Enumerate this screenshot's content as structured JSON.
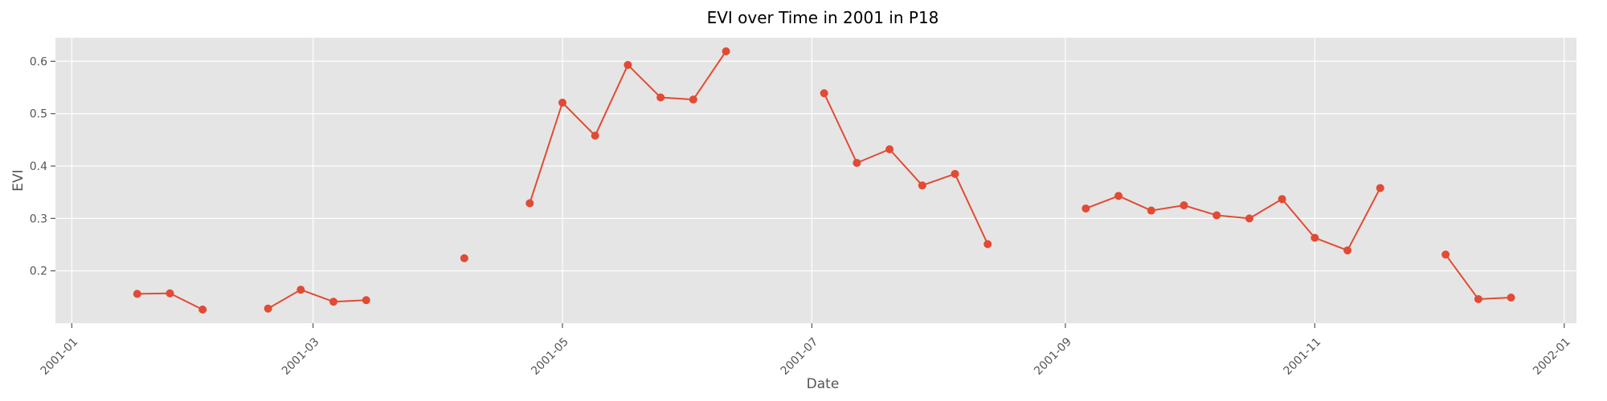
{
  "chart_data": {
    "type": "line",
    "title": "EVI over Time in 2001 in P18",
    "xlabel": "Date",
    "ylabel": "EVI",
    "x_type": "date",
    "xlim": [
      "2000-12-28",
      "2002-01-04"
    ],
    "ylim": [
      0.1,
      0.645
    ],
    "x_ticks": [
      "2001-01",
      "2001-03",
      "2001-05",
      "2001-07",
      "2001-09",
      "2001-11",
      "2002-01"
    ],
    "y_ticks": [
      0.2,
      0.3,
      0.4,
      0.5,
      0.6
    ],
    "grid": true,
    "legend": "none",
    "colors": {
      "series": "#E24A33",
      "plot_background": "#E5E5E5",
      "grid": "#FFFFFF",
      "tick_text": "#555555",
      "title_text": "#000000"
    },
    "series": [
      {
        "values": [
          {
            "x": "2001-01-17",
            "y": 0.156
          },
          {
            "x": "2001-01-25",
            "y": 0.157
          },
          {
            "x": "2001-02-02",
            "y": 0.126
          },
          {
            "x": "2001-02-10",
            "y": null
          },
          {
            "x": "2001-02-18",
            "y": 0.128
          },
          {
            "x": "2001-02-26",
            "y": 0.164
          },
          {
            "x": "2001-03-06",
            "y": 0.141
          },
          {
            "x": "2001-03-14",
            "y": 0.144
          },
          {
            "x": "2001-03-22",
            "y": null
          },
          {
            "x": "2001-03-30",
            "y": null
          },
          {
            "x": "2001-04-07",
            "y": 0.224
          },
          {
            "x": "2001-04-15",
            "y": null
          },
          {
            "x": "2001-04-23",
            "y": 0.329
          },
          {
            "x": "2001-05-01",
            "y": 0.521
          },
          {
            "x": "2001-05-09",
            "y": 0.458
          },
          {
            "x": "2001-05-17",
            "y": 0.593
          },
          {
            "x": "2001-05-25",
            "y": 0.531
          },
          {
            "x": "2001-06-02",
            "y": 0.527
          },
          {
            "x": "2001-06-10",
            "y": 0.619
          },
          {
            "x": "2001-06-18",
            "y": null
          },
          {
            "x": "2001-06-26",
            "y": null
          },
          {
            "x": "2001-07-04",
            "y": 0.539
          },
          {
            "x": "2001-07-12",
            "y": 0.406
          },
          {
            "x": "2001-07-20",
            "y": 0.432
          },
          {
            "x": "2001-07-28",
            "y": 0.363
          },
          {
            "x": "2001-08-05",
            "y": 0.385
          },
          {
            "x": "2001-08-13",
            "y": 0.251
          },
          {
            "x": "2001-08-21",
            "y": null
          },
          {
            "x": "2001-08-29",
            "y": null
          },
          {
            "x": "2001-09-06",
            "y": 0.319
          },
          {
            "x": "2001-09-14",
            "y": 0.343
          },
          {
            "x": "2001-09-22",
            "y": 0.315
          },
          {
            "x": "2001-09-30",
            "y": 0.325
          },
          {
            "x": "2001-10-08",
            "y": 0.306
          },
          {
            "x": "2001-10-16",
            "y": 0.3
          },
          {
            "x": "2001-10-24",
            "y": 0.337
          },
          {
            "x": "2001-11-01",
            "y": 0.263
          },
          {
            "x": "2001-11-09",
            "y": 0.239
          },
          {
            "x": "2001-11-17",
            "y": 0.358
          },
          {
            "x": "2001-11-25",
            "y": null
          },
          {
            "x": "2001-12-03",
            "y": 0.231
          },
          {
            "x": "2001-12-11",
            "y": 0.146
          },
          {
            "x": "2001-12-19",
            "y": 0.149
          }
        ]
      }
    ]
  }
}
